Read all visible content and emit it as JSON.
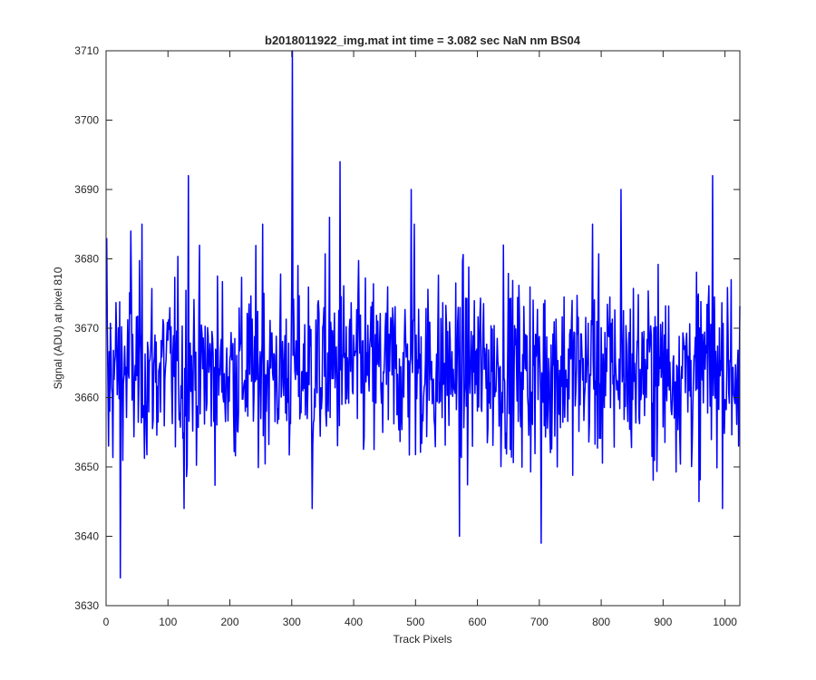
{
  "chart_data": {
    "type": "line",
    "title": "b2018011922_img.mat int time = 3.082 sec  NaN nm BS04",
    "xlabel": "Track Pixels",
    "ylabel": "Signal (ADU) at pixel 810",
    "xlim": [
      0,
      1024
    ],
    "ylim": [
      3630,
      3710
    ],
    "xticks": [
      0,
      100,
      200,
      300,
      400,
      500,
      600,
      700,
      800,
      900,
      1000
    ],
    "yticks": [
      3630,
      3640,
      3650,
      3660,
      3670,
      3680,
      3690,
      3700,
      3710
    ],
    "grid": false,
    "series": [
      {
        "color": "#0000ff",
        "x_start": 1,
        "x_step": 1,
        "count": 1024,
        "baseline": 3664,
        "spikes": [
          {
            "x": 1,
            "y": 3683
          },
          {
            "x": 4,
            "y": 3653
          },
          {
            "x": 23,
            "y": 3634
          },
          {
            "x": 40,
            "y": 3684
          },
          {
            "x": 58,
            "y": 3685
          },
          {
            "x": 133,
            "y": 3692
          },
          {
            "x": 126,
            "y": 3644
          },
          {
            "x": 253,
            "y": 3685
          },
          {
            "x": 301,
            "y": 3710
          },
          {
            "x": 333,
            "y": 3644
          },
          {
            "x": 378,
            "y": 3694
          },
          {
            "x": 361,
            "y": 3686
          },
          {
            "x": 493,
            "y": 3690
          },
          {
            "x": 498,
            "y": 3685
          },
          {
            "x": 571,
            "y": 3640
          },
          {
            "x": 642,
            "y": 3682
          },
          {
            "x": 703,
            "y": 3639
          },
          {
            "x": 786,
            "y": 3685
          },
          {
            "x": 832,
            "y": 3690
          },
          {
            "x": 958,
            "y": 3645
          },
          {
            "x": 980,
            "y": 3692
          },
          {
            "x": 1010,
            "y": 3677
          },
          {
            "x": 1022,
            "y": 3653
          }
        ]
      }
    ]
  }
}
